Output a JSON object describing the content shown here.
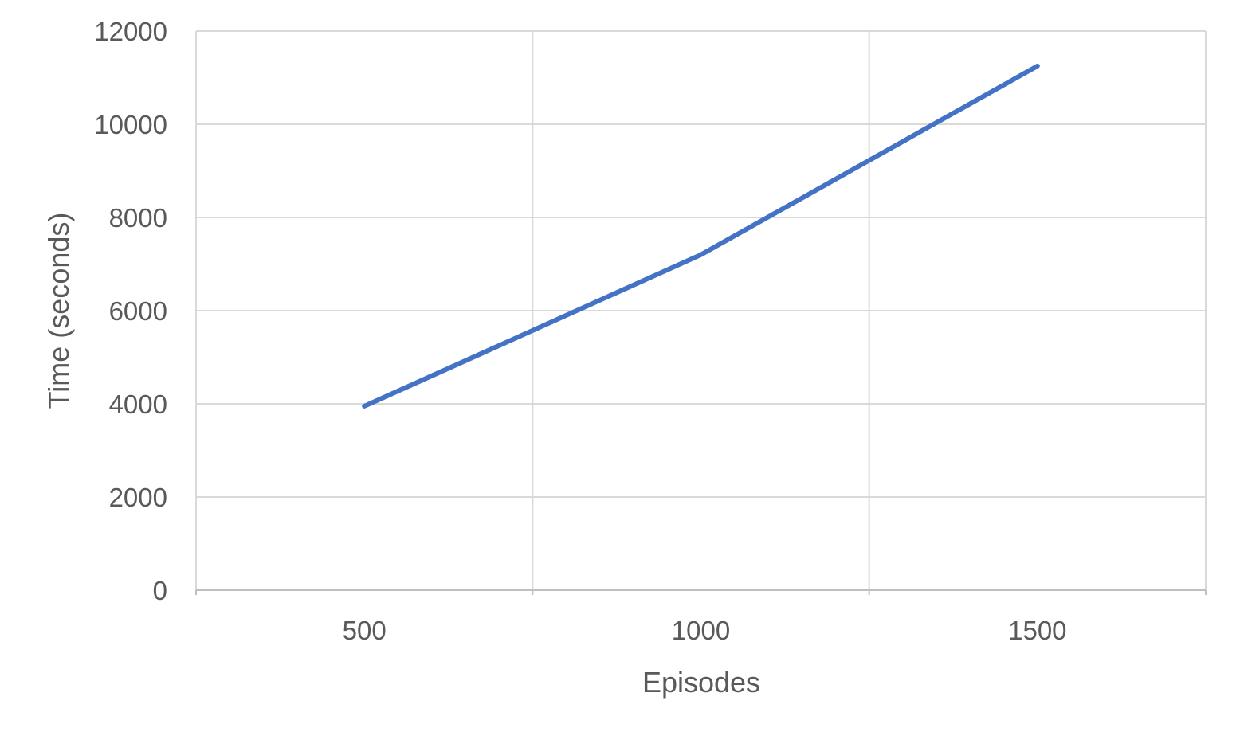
{
  "chart_data": {
    "type": "line",
    "title": "",
    "xlabel": "Episodes",
    "ylabel": "Time (seconds)",
    "x": [
      500,
      1000,
      1500
    ],
    "series": [
      {
        "values": [
          3950,
          7200,
          11250
        ]
      }
    ],
    "xlim": [
      250,
      1750
    ],
    "xticks": [
      500,
      1000,
      1500
    ],
    "ylim": [
      0,
      12000
    ],
    "yticks": [
      0,
      2000,
      4000,
      6000,
      8000,
      10000,
      12000
    ],
    "grid": true,
    "legend": "none",
    "colors": {
      "series": "#4472C4",
      "grid": "#D9D9D9",
      "axis_line": "#BFBFBF",
      "text": "#595959"
    }
  }
}
